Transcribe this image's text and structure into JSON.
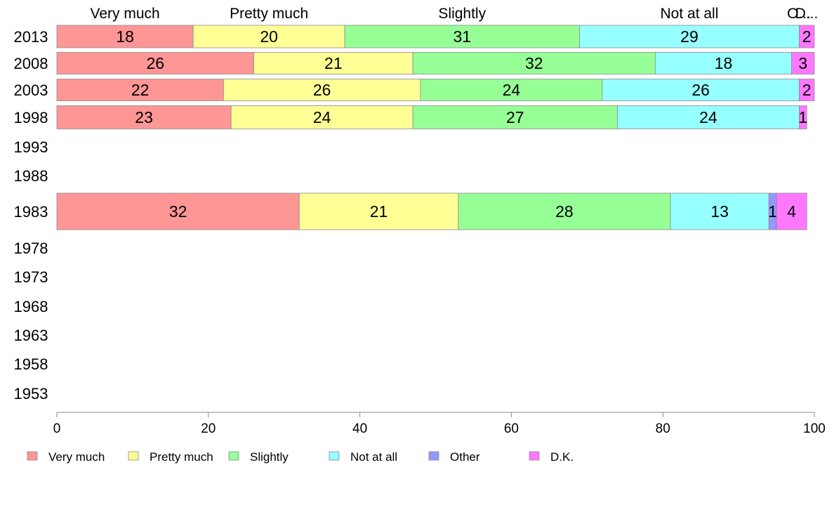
{
  "chart_data": {
    "type": "bar",
    "orientation": "horizontal",
    "stacked": true,
    "categories": [
      "2013",
      "2008",
      "2003",
      "1998",
      "1993",
      "1988",
      "1983",
      "1978",
      "1973",
      "1968",
      "1963",
      "1958",
      "1953"
    ],
    "series": [
      {
        "name": "Very much",
        "color": "#ff9696",
        "values": [
          18,
          26,
          22,
          23,
          null,
          null,
          32,
          null,
          null,
          null,
          null,
          null,
          null
        ]
      },
      {
        "name": "Pretty much",
        "color": "#ffff96",
        "values": [
          20,
          21,
          26,
          24,
          null,
          null,
          21,
          null,
          null,
          null,
          null,
          null,
          null
        ]
      },
      {
        "name": "Slightly",
        "color": "#96ff96",
        "values": [
          31,
          32,
          24,
          27,
          null,
          null,
          28,
          null,
          null,
          null,
          null,
          null,
          null
        ]
      },
      {
        "name": "Not at all",
        "color": "#96ffff",
        "values": [
          29,
          18,
          26,
          24,
          null,
          null,
          13,
          null,
          null,
          null,
          null,
          null,
          null
        ]
      },
      {
        "name": "Other",
        "color": "#9696ff",
        "values": [
          0,
          0,
          0,
          0,
          null,
          null,
          1,
          null,
          null,
          null,
          null,
          null,
          null
        ]
      },
      {
        "name": "D.K.",
        "color": "#ff78ff",
        "values": [
          2,
          3,
          2,
          1,
          null,
          null,
          4,
          null,
          null,
          null,
          null,
          null,
          null
        ]
      }
    ],
    "top_labels": [
      "Very much",
      "Pretty much",
      "Slightly",
      "Not at all",
      "O...",
      "D..."
    ],
    "xlim": [
      0,
      100
    ],
    "xticks": [
      "0",
      "20",
      "40",
      "60",
      "80",
      "100"
    ],
    "grid": false,
    "legend_position": "bottom",
    "legend": [
      "Very much",
      "Pretty much",
      "Slightly",
      "Not at all",
      "Other",
      "D.K."
    ]
  }
}
